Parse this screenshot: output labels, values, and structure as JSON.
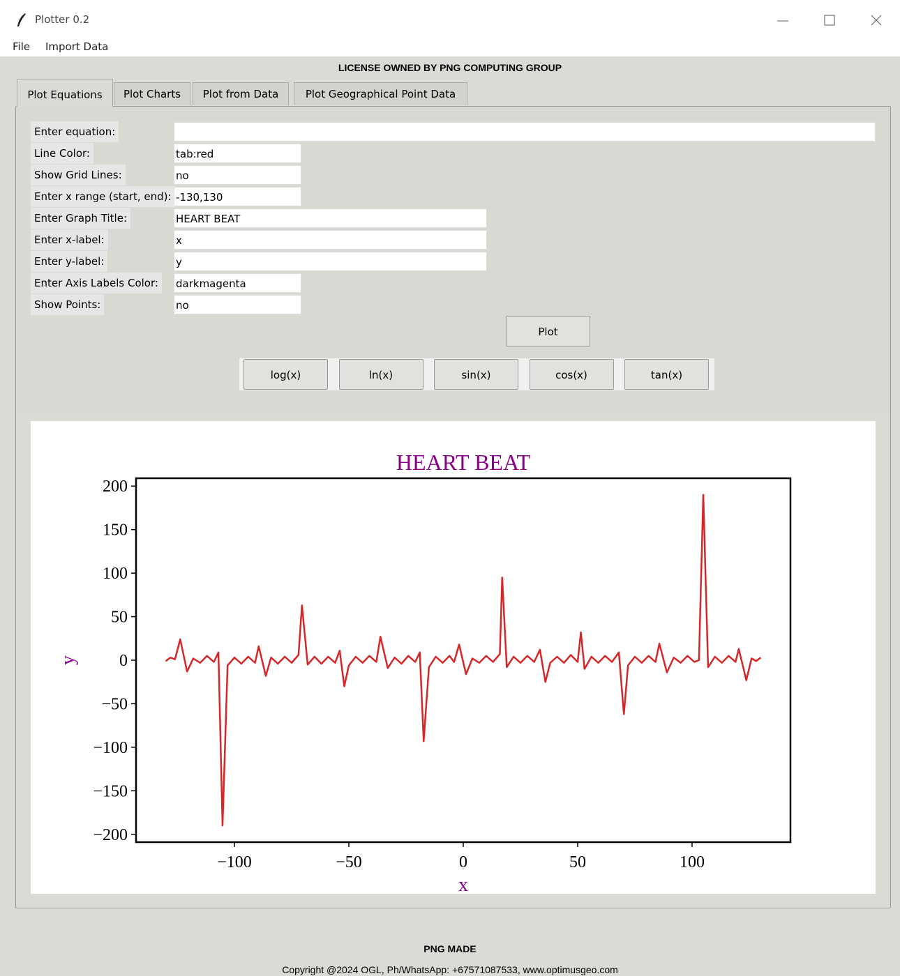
{
  "window": {
    "title": "Plotter 0.2"
  },
  "menu": [
    "File",
    "Import Data"
  ],
  "license": "LICENSE OWNED BY PNG COMPUTING GROUP",
  "tabs": [
    "Plot Equations",
    "Plot Charts",
    "Plot from Data",
    "Plot Geographical Point Data"
  ],
  "form": [
    {
      "label": "Enter equation:",
      "value": ""
    },
    {
      "label": "Line Color:",
      "value": "tab:red"
    },
    {
      "label": "Show Grid Lines:",
      "value": "no"
    },
    {
      "label": "Enter x range (start, end):",
      "value": "-130,130"
    },
    {
      "label": "Enter Graph Title:",
      "value": "HEART BEAT"
    },
    {
      "label": "Enter x-label:",
      "value": "x"
    },
    {
      "label": "Enter y-label:",
      "value": "y"
    },
    {
      "label": "Enter Axis Labels Color:",
      "value": "darkmagenta"
    },
    {
      "label": "Show Points:",
      "value": "no"
    }
  ],
  "plot_button": "Plot",
  "function_buttons": [
    "log(x)",
    "ln(x)",
    "sin(x)",
    "cos(x)",
    "tan(x)"
  ],
  "footer": {
    "title": "PNG MADE",
    "copyright": "Copyright @2024 OGL, Ph/WhatsApp: +67571087533, www.optimusgeo.com"
  },
  "chart_data": {
    "type": "line",
    "title": "HEART BEAT",
    "x_label": "x",
    "y_label": "y",
    "color": "#d62728",
    "label_color": "#8b008b",
    "grid": false,
    "xlim": [
      -143,
      143
    ],
    "ylim": [
      -209,
      209
    ],
    "xticks": [
      {
        "value": -100,
        "label": "−100"
      },
      {
        "value": -50,
        "label": "−50"
      },
      0,
      50,
      100
    ],
    "yticks": [
      {
        "value": -200,
        "label": "−200"
      },
      {
        "value": -150,
        "label": "−150"
      },
      {
        "value": -100,
        "label": "−100"
      },
      {
        "value": -50,
        "label": "−50"
      },
      0,
      50,
      100,
      150,
      200
    ],
    "x": [
      -130,
      -128,
      -126,
      -123.7,
      -120.7,
      -118,
      -115,
      -112,
      -109,
      -107,
      -105.2,
      -103,
      -100,
      -97,
      -94,
      -91,
      -89.4,
      -86.3,
      -84,
      -81,
      -78,
      -75,
      -72,
      -70.5,
      -68,
      -65,
      -62,
      -59,
      -56,
      -54,
      -52,
      -50,
      -47,
      -44,
      -41,
      -38,
      -36.2,
      -33,
      -30,
      -27,
      -24,
      -21,
      -19,
      -17.3,
      -15,
      -12,
      -9,
      -6,
      -4,
      -1.8,
      1.2,
      4,
      7,
      10,
      13,
      16,
      17,
      19,
      22,
      25,
      28,
      31,
      33.5,
      35.9,
      38,
      41,
      44,
      47,
      50,
      51.4,
      53,
      56,
      59,
      62,
      65,
      68,
      70.2,
      72,
      75,
      78,
      81,
      84,
      85.7,
      89,
      92,
      95,
      98,
      101,
      103,
      104.9,
      107,
      110,
      113,
      116,
      119,
      120.4,
      123.7,
      126,
      128,
      130
    ],
    "values": [
      -1,
      3,
      1,
      24,
      -13,
      2,
      -3,
      5,
      -2,
      9,
      -190,
      -6,
      3,
      -4,
      4,
      -3,
      16,
      -18,
      3,
      -4,
      4,
      -3,
      6,
      63,
      -5,
      4,
      -4,
      4,
      -3,
      11,
      -30,
      -6,
      4,
      -3,
      5,
      -2,
      27,
      -9,
      3,
      -4,
      5,
      -2,
      9,
      -93,
      -8,
      4,
      -3,
      5,
      -2,
      18,
      -16,
      2,
      -3,
      5,
      -2,
      7,
      95,
      -8,
      4,
      -3,
      5,
      -2,
      12,
      -25,
      -3,
      4,
      -3,
      6,
      -2,
      32,
      -10,
      4,
      -3,
      5,
      -2,
      9,
      -62,
      -6,
      4,
      -3,
      5,
      -2,
      19,
      -14,
      3,
      -3,
      5,
      -2,
      0,
      190,
      -8,
      4,
      -3,
      5,
      -2,
      13,
      -23,
      2,
      -1,
      3
    ]
  }
}
